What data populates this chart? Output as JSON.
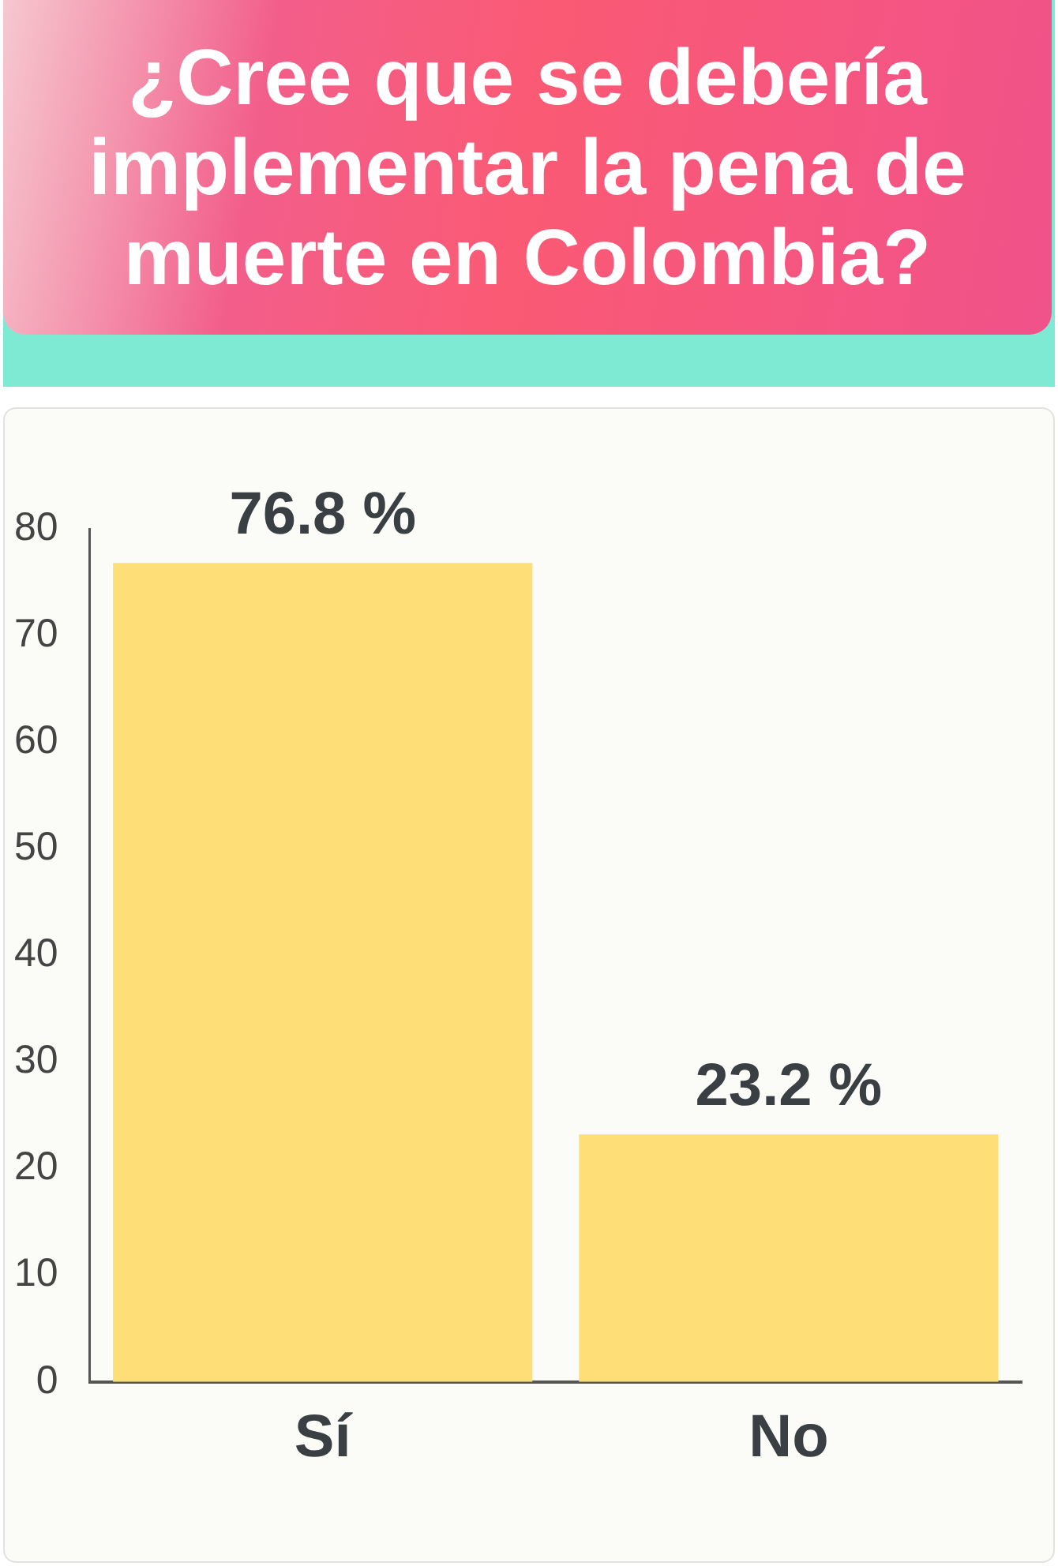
{
  "chart_data": {
    "type": "bar",
    "title": "¿Cree que se debería implementar la pena de muerte en Colombia?",
    "categories": [
      "Sí",
      "No"
    ],
    "values": [
      76.8,
      23.2
    ],
    "value_labels": [
      "76.8 %",
      "23.2 %"
    ],
    "color": "#fede76",
    "ylim": [
      0,
      80
    ],
    "yticks": [
      0,
      10,
      20,
      30,
      40,
      50,
      60,
      70,
      80
    ],
    "grid": false,
    "legend": false
  }
}
